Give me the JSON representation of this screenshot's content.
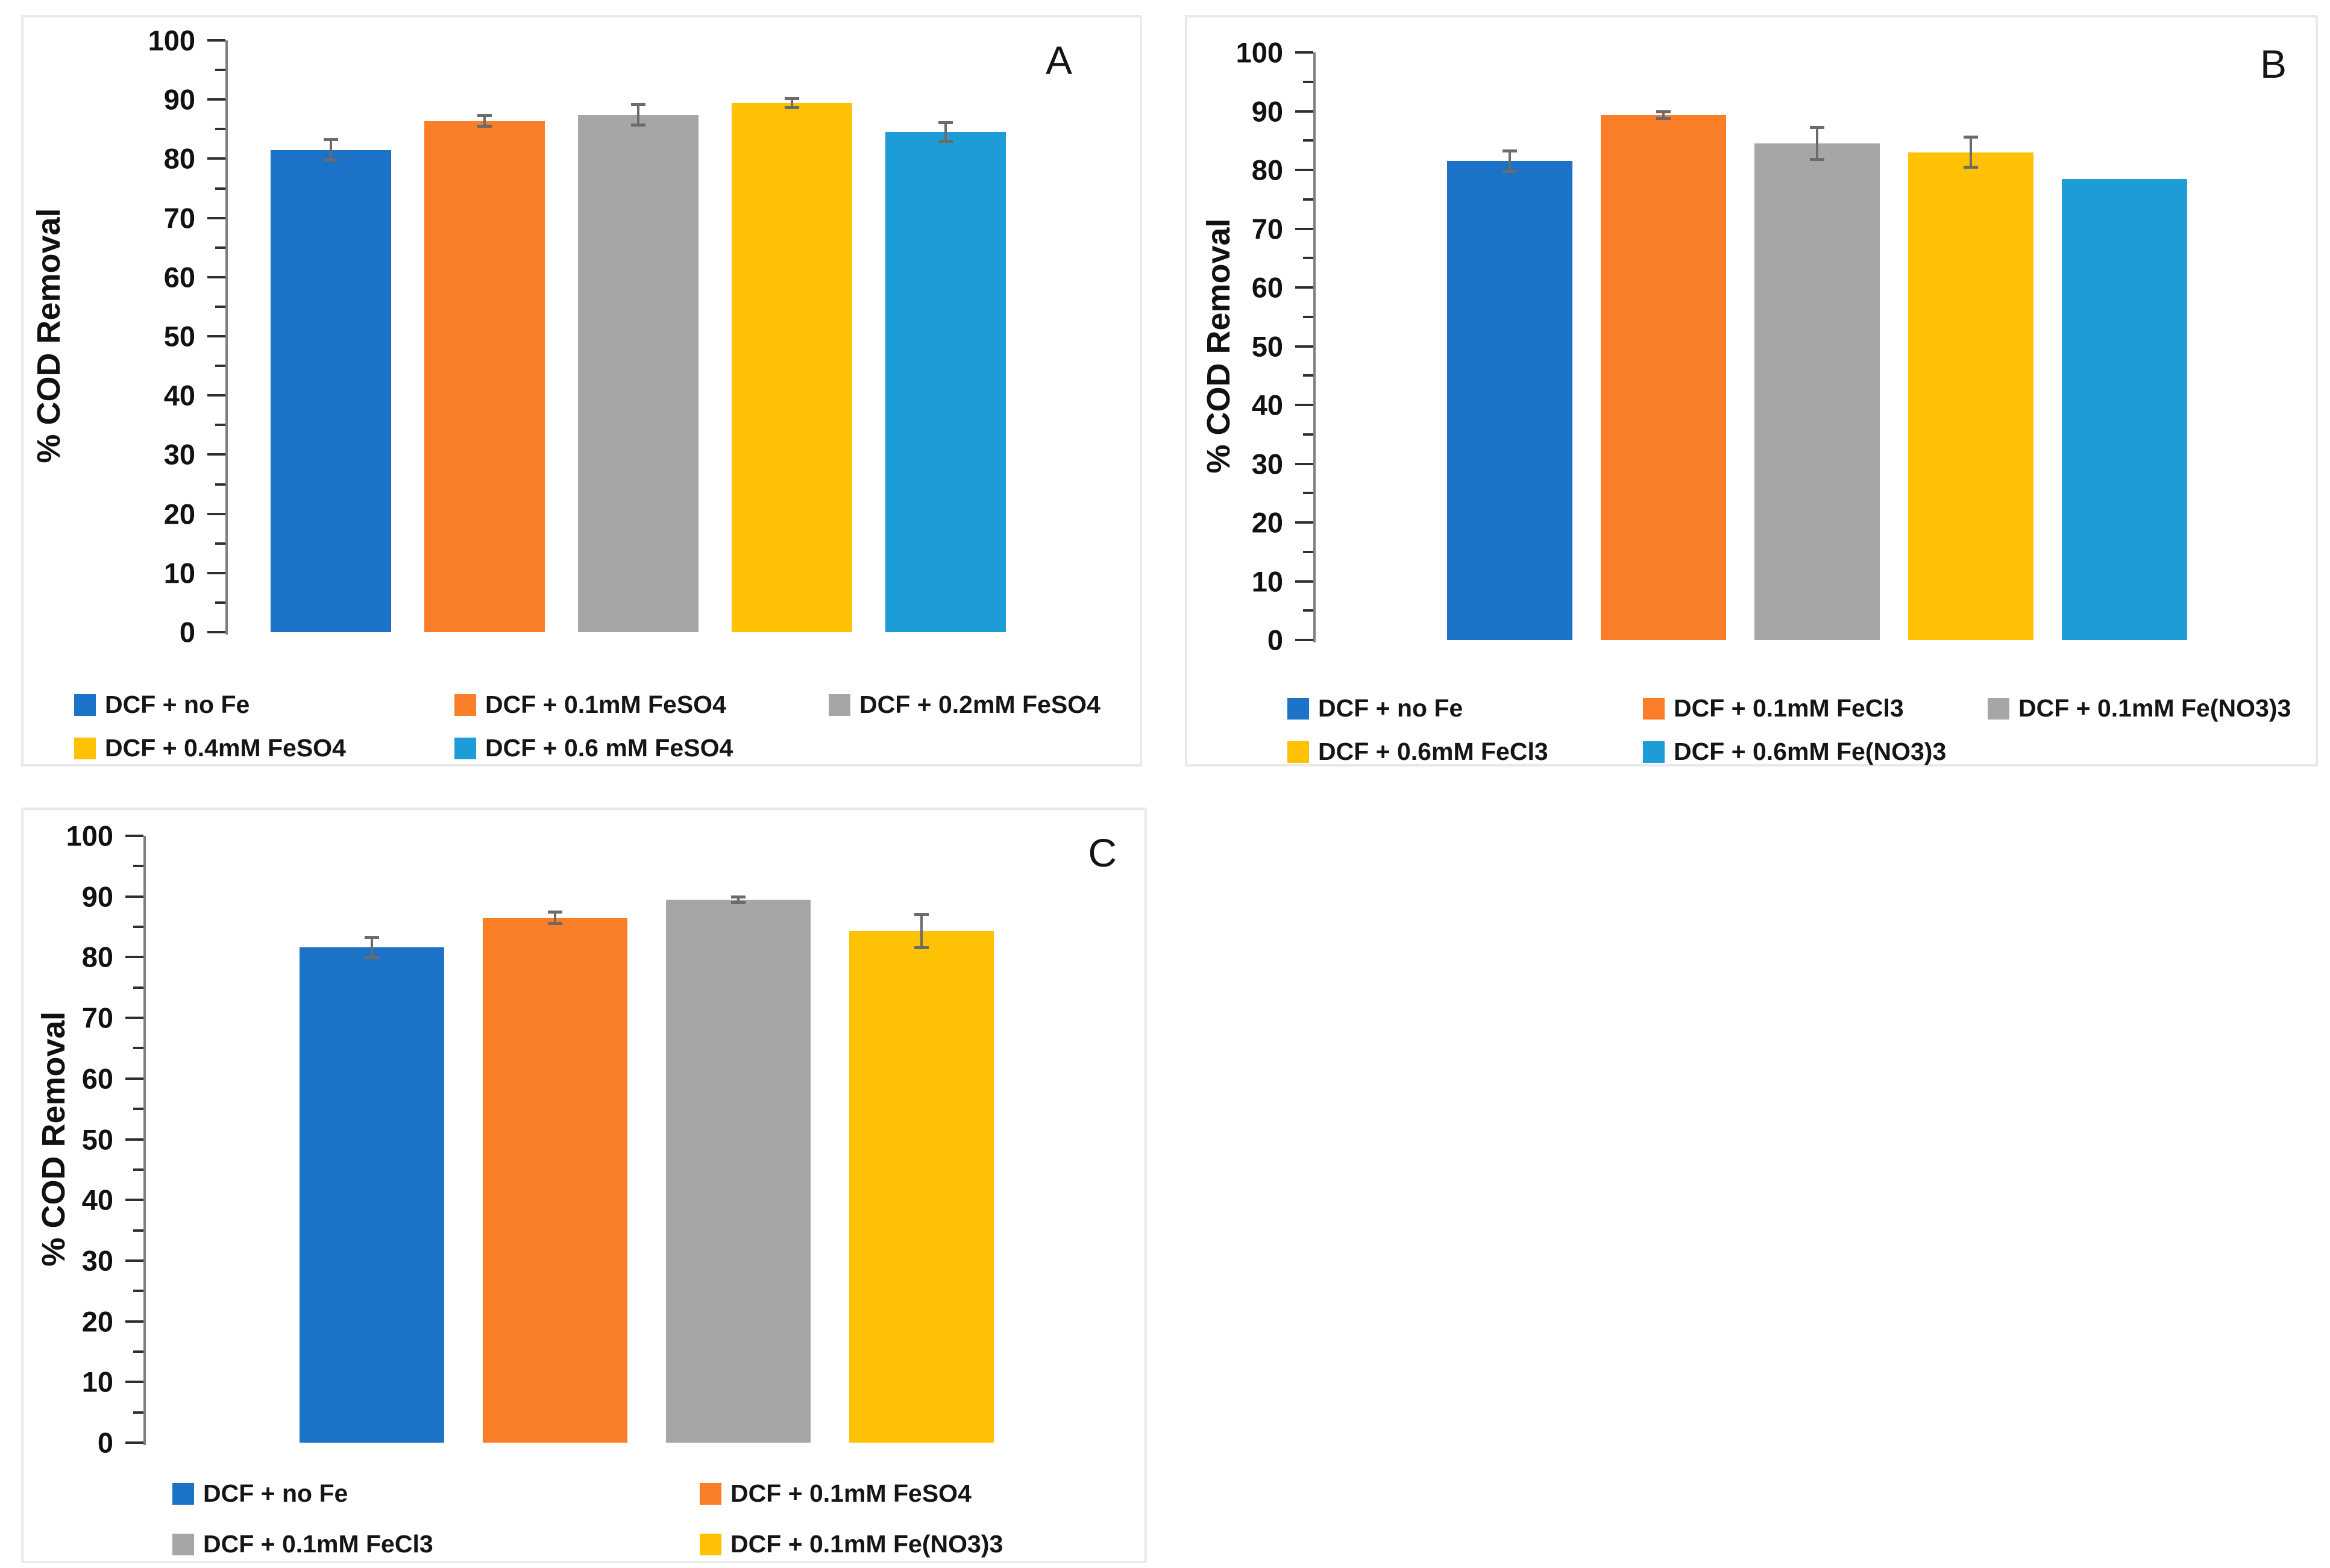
{
  "figure_type": "three-panel bar figure",
  "y_axis_title": "% COD Removal",
  "chart_data": [
    {
      "panel": "A",
      "type": "bar",
      "title": "",
      "xlabel": "",
      "ylabel": "% COD Removal",
      "ylim": [
        0,
        100
      ],
      "ytick_step": 10,
      "yminor_step": 5,
      "grid": false,
      "legend_position": "bottom",
      "categories": [
        "DCF + no Fe",
        "DCF + 0.1mM FeSO4",
        "DCF + 0.2mM FeSO4",
        "DCF + 0.4mM FeSO4",
        "DCF + 0.6 mM FeSO4"
      ],
      "values": [
        81.5,
        86.4,
        87.4,
        89.4,
        84.5
      ],
      "errors": [
        1.8,
        1.0,
        1.8,
        0.8,
        1.6
      ],
      "colors": [
        "#1B72C7",
        "#F97E27",
        "#A6A6A6",
        "#FFC103",
        "#1E9CD8"
      ]
    },
    {
      "panel": "B",
      "type": "bar",
      "title": "",
      "xlabel": "",
      "ylabel": "% COD Removal",
      "ylim": [
        0,
        100
      ],
      "ytick_step": 10,
      "yminor_step": 5,
      "grid": false,
      "legend_position": "bottom",
      "categories": [
        "DCF + no Fe",
        "DCF + 0.1mM FeCl3",
        "DCF + 0.1mM Fe(NO3)3",
        "DCF + 0.6mM FeCl3",
        "DCF + 0.6mM Fe(NO3)3"
      ],
      "values": [
        81.5,
        89.3,
        84.5,
        83.0,
        78.5
      ],
      "errors": [
        1.8,
        0.6,
        2.8,
        2.6,
        0
      ],
      "colors": [
        "#1B72C7",
        "#F97E27",
        "#A6A6A6",
        "#FFC103",
        "#1E9CD8"
      ]
    },
    {
      "panel": "C",
      "type": "bar",
      "title": "",
      "xlabel": "",
      "ylabel": "% COD Removal",
      "ylim": [
        0,
        100
      ],
      "ytick_step": 10,
      "yminor_step": 5,
      "grid": false,
      "legend_position": "bottom",
      "categories": [
        "DCF + no Fe",
        "DCF + 0.1mM FeSO4",
        "DCF + 0.1mM FeCl3",
        "DCF + 0.1mM Fe(NO3)3"
      ],
      "values": [
        81.6,
        86.5,
        89.5,
        84.3
      ],
      "errors": [
        1.7,
        1.0,
        0.5,
        2.8
      ],
      "colors": [
        "#1B72C7",
        "#F97E27",
        "#A6A6A6",
        "#FFC103"
      ]
    }
  ]
}
